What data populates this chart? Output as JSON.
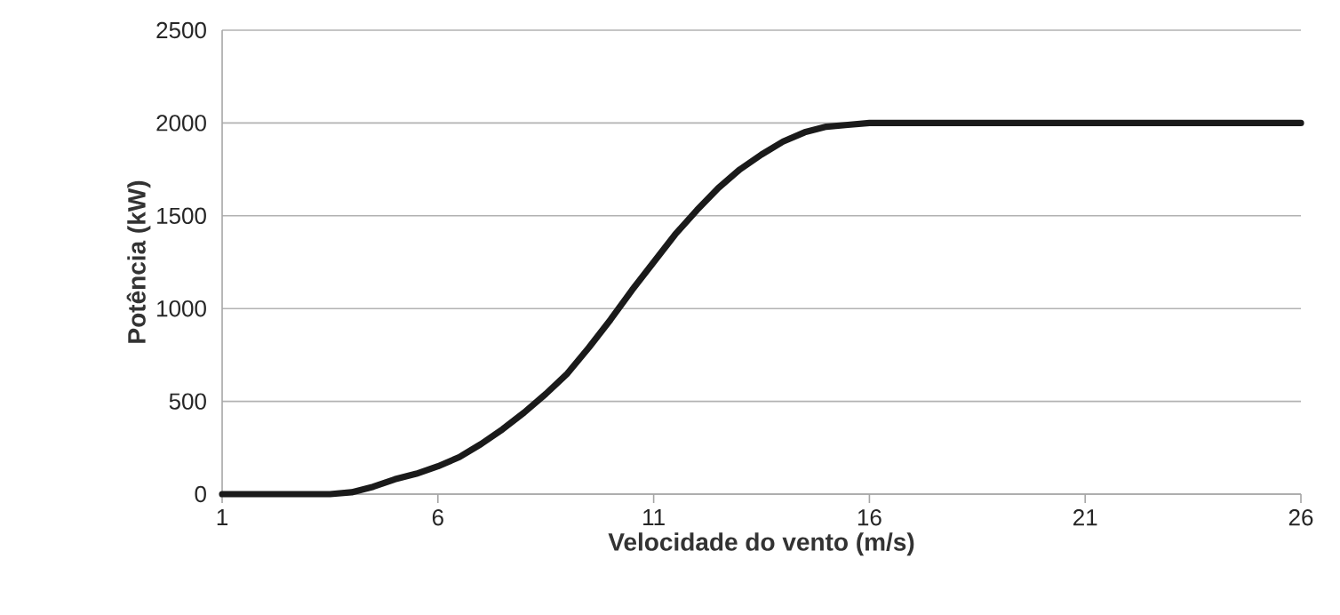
{
  "chart_data": {
    "type": "line",
    "xlabel": "Velocidade do vento (m/s)",
    "ylabel": "Potência (kW)",
    "x": [
      1,
      2,
      3,
      3.5,
      4,
      4.5,
      5,
      5.5,
      6,
      6.5,
      7,
      7.5,
      8,
      8.5,
      9,
      9.5,
      10,
      10.5,
      11,
      11.5,
      12,
      12.5,
      13,
      13.5,
      14,
      14.5,
      15,
      15.5,
      16,
      18,
      20,
      22,
      24,
      26
    ],
    "series": [
      {
        "color": "#1a1a1a",
        "values": [
          0,
          0,
          0,
          0,
          10,
          40,
          80,
          110,
          150,
          200,
          270,
          350,
          440,
          540,
          650,
          790,
          940,
          1100,
          1250,
          1400,
          1530,
          1650,
          1750,
          1830,
          1900,
          1950,
          1980,
          1990,
          2000,
          2000,
          2000,
          2000,
          2000,
          2000
        ]
      }
    ],
    "xlim": [
      1,
      26
    ],
    "ylim": [
      0,
      2500
    ],
    "xticks": [
      1,
      6,
      11,
      16,
      21,
      26
    ],
    "yticks": [
      0,
      500,
      1000,
      1500,
      2000,
      2500
    ],
    "grid": "y",
    "marker": "none",
    "line_style": "solid"
  }
}
